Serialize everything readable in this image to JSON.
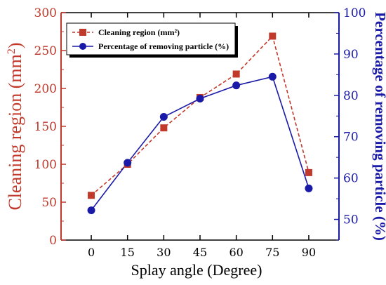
{
  "chart_data": {
    "type": "line",
    "x": [
      0,
      15,
      30,
      45,
      60,
      75,
      90
    ],
    "xlabel": "Splay angle (Degree)",
    "xticks": [
      "0",
      "15",
      "30",
      "45",
      "60",
      "75",
      "90"
    ],
    "y_left": {
      "label": "Cleaning region (mm",
      "label_sup": "2",
      "label_end": ")",
      "lim": [
        0,
        300
      ],
      "ticks": [
        "0",
        "50",
        "100",
        "150",
        "200",
        "250",
        "300"
      ]
    },
    "y_right": {
      "label": "Percentage of removing particle (%)",
      "lim": [
        45,
        100
      ],
      "ticks": [
        "50",
        "60",
        "70",
        "80",
        "90",
        "100"
      ]
    },
    "series": [
      {
        "name": "Cleaning region (mm²)",
        "axis": "left",
        "marker": "square",
        "line": "dashed",
        "color": "#c0392b",
        "values": [
          59,
          100,
          148,
          188,
          219,
          269,
          89
        ]
      },
      {
        "name": "Percentage of removing particle (%)",
        "axis": "right",
        "marker": "circle",
        "line": "solid",
        "color": "#1a1aa8",
        "values": [
          52.2,
          63.7,
          74.8,
          79.2,
          82.4,
          84.5,
          57.5
        ]
      }
    ],
    "grid": false,
    "legend_position": "top-left"
  }
}
